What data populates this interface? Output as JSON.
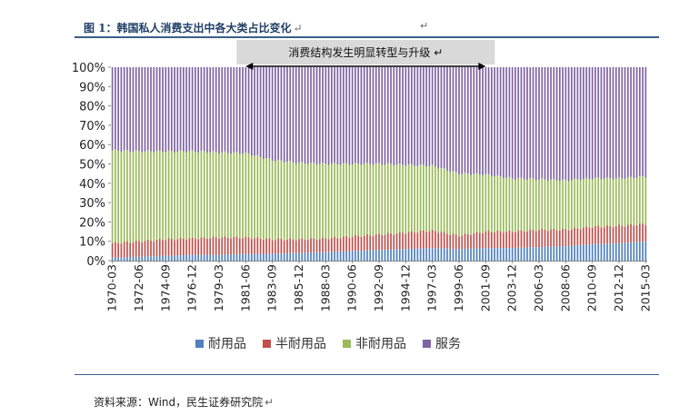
{
  "header": {
    "figure_title": "图 1：韩国私人消费支出中各大类占比变化",
    "title_mark": "↵",
    "stray_mark": "↵"
  },
  "footer": {
    "source": "资料来源：Wind，民生证券研究院",
    "source_mark": "↵"
  },
  "chart_data": {
    "type": "bar",
    "stacked": true,
    "percent_stacked": true,
    "title": "",
    "annotation": "消费结构发生明显转型与升级",
    "annotation_mark": "↵",
    "annotation_span": [
      "1981-06",
      "2001-09"
    ],
    "xlabel": "",
    "ylabel": "",
    "ylim": [
      0,
      100
    ],
    "y_ticks": [
      "0%",
      "10%",
      "20%",
      "30%",
      "40%",
      "50%",
      "60%",
      "70%",
      "80%",
      "90%",
      "100%"
    ],
    "x_tick_labels": [
      "1970-03",
      "1972-06",
      "1974-09",
      "1976-12",
      "1979-03",
      "1981-06",
      "1983-09",
      "1985-12",
      "1988-03",
      "1990-06",
      "1992-09",
      "1994-12",
      "1997-03",
      "1999-06",
      "2001-09",
      "2003-12",
      "2006-03",
      "2008-06",
      "2010-09",
      "2012-12",
      "2015-03"
    ],
    "legend_position": "bottom",
    "legend": [
      "耐用品",
      "半耐用品",
      "非耐用品",
      "服务"
    ],
    "colors": {
      "耐用品": "#4f81bd",
      "半耐用品": "#c0504d",
      "非耐用品": "#9bbb59",
      "服务": "#8064a2",
      "annotation_box": "#d9d9d9"
    },
    "categories": [
      "1970-03",
      "1972-06",
      "1974-09",
      "1976-12",
      "1979-03",
      "1981-06",
      "1983-09",
      "1985-12",
      "1988-03",
      "1990-06",
      "1992-09",
      "1994-12",
      "1997-03",
      "1999-06",
      "2001-09",
      "2003-12",
      "2006-03",
      "2008-06",
      "2010-09",
      "2012-12",
      "2015-03"
    ],
    "series": [
      {
        "name": "耐用品",
        "values": [
          1.5,
          2.0,
          2.5,
          3.0,
          3.0,
          3.5,
          3.5,
          4.0,
          4.5,
          5.0,
          5.5,
          6.0,
          6.5,
          6.0,
          6.5,
          6.5,
          7.0,
          7.5,
          8.5,
          9.0,
          10.0
        ]
      },
      {
        "name": "半耐用品",
        "values": [
          7.5,
          8.0,
          8.5,
          8.5,
          9.0,
          8.5,
          7.5,
          7.0,
          7.0,
          7.5,
          8.0,
          8.5,
          9.0,
          7.0,
          8.5,
          8.5,
          9.0,
          8.5,
          9.0,
          9.0,
          9.0
        ]
      },
      {
        "name": "非耐用品",
        "values": [
          48.0,
          46.5,
          45.5,
          45.0,
          44.0,
          43.5,
          41.0,
          39.5,
          38.5,
          37.5,
          36.5,
          35.0,
          33.5,
          32.0,
          29.5,
          27.5,
          26.0,
          25.5,
          25.0,
          24.5,
          24.5
        ]
      },
      {
        "name": "服务",
        "values": [
          43.0,
          43.5,
          43.5,
          43.5,
          44.0,
          44.5,
          48.0,
          49.5,
          50.0,
          50.0,
          50.0,
          50.5,
          51.0,
          55.0,
          55.5,
          57.5,
          58.0,
          58.5,
          57.5,
          57.5,
          56.5
        ]
      }
    ]
  }
}
